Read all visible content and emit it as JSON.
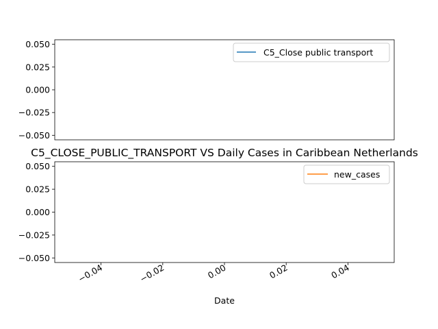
{
  "chart_data": [
    {
      "type": "line",
      "title": "",
      "xlabel": "",
      "ylabel": "",
      "ylim": [
        -0.055,
        0.055
      ],
      "yticks": [
        "0.050",
        "0.025",
        "0.000",
        "-0.025",
        "-0.050"
      ],
      "ytick_values": [
        0.05,
        0.025,
        0.0,
        -0.025,
        -0.05
      ],
      "grid": false,
      "legend_position": "top-right",
      "series": [
        {
          "name": "C5_Close public transport",
          "color": "#1f77b4",
          "values": []
        }
      ]
    },
    {
      "type": "line",
      "title": "C5_CLOSE_PUBLIC_TRANSPORT VS Daily Cases in Caribbean Netherlands",
      "xlabel": "Date",
      "ylabel": "",
      "xlim": [
        -0.055,
        0.055
      ],
      "xticks": [
        "-0.04",
        "-0.02",
        "0.00",
        "0.02",
        "0.04"
      ],
      "xtick_values": [
        -0.04,
        -0.02,
        0.0,
        0.02,
        0.04
      ],
      "ylim": [
        -0.055,
        0.055
      ],
      "yticks": [
        "0.050",
        "0.025",
        "0.000",
        "-0.025",
        "-0.050"
      ],
      "ytick_values": [
        0.05,
        0.025,
        0.0,
        -0.025,
        -0.05
      ],
      "grid": false,
      "legend_position": "top-right",
      "series": [
        {
          "name": "new_cases",
          "color": "#ff7f0e",
          "values": []
        }
      ]
    }
  ]
}
